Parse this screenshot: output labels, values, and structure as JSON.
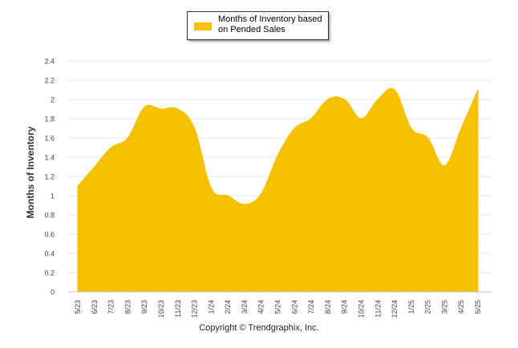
{
  "chart_data": {
    "type": "area",
    "ylabel": "Months of Inventory",
    "xlabel": "",
    "ylim": [
      0,
      2.4
    ],
    "yticks": [
      "0",
      "0.2",
      "0.4",
      "0.6",
      "0.8",
      "1",
      "1.2",
      "1.4",
      "1.6",
      "1.8",
      "2",
      "2.2",
      "2.4"
    ],
    "categories": [
      "5/23",
      "6/23",
      "7/23",
      "8/23",
      "9/23",
      "10/23",
      "11/23",
      "12/23",
      "1/24",
      "2/24",
      "3/24",
      "4/24",
      "5/24",
      "6/24",
      "7/24",
      "8/24",
      "9/24",
      "10/24",
      "11/24",
      "12/24",
      "1/25",
      "2/25",
      "3/25",
      "4/25",
      "5/25"
    ],
    "series": [
      {
        "name": "Months of Inventory based on Pended Sales",
        "color": "#f5c100",
        "values": [
          1.1,
          1.3,
          1.5,
          1.6,
          1.92,
          1.9,
          1.9,
          1.7,
          1.08,
          1.0,
          0.91,
          1.02,
          1.42,
          1.7,
          1.8,
          2.0,
          2.0,
          1.8,
          2.0,
          2.1,
          1.7,
          1.6,
          1.31,
          1.7,
          2.1
        ]
      }
    ],
    "grid": true,
    "legend": "top-center"
  },
  "footer": {
    "copyright": "Copyright © Trendgraphix, Inc."
  }
}
